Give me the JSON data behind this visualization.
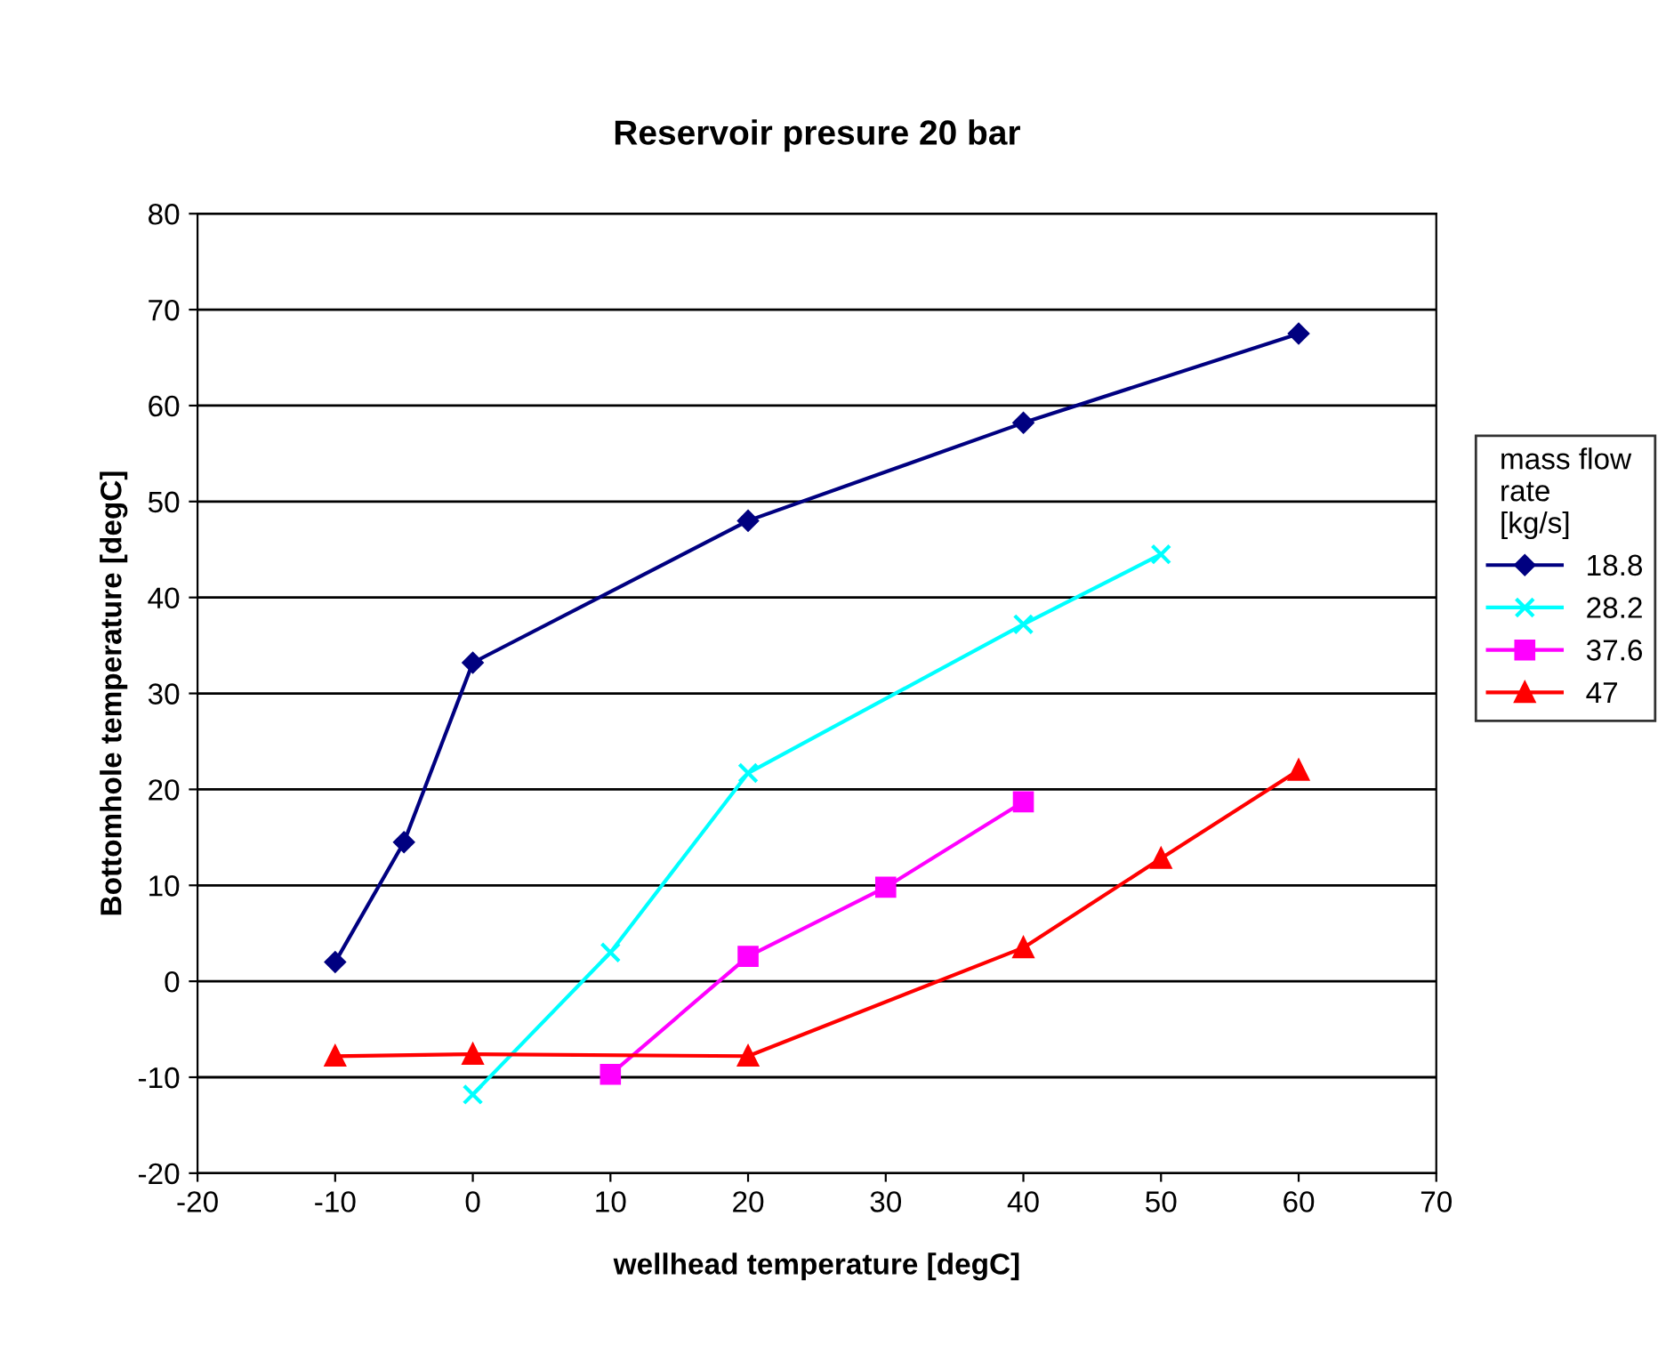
{
  "chart_data": {
    "type": "line",
    "title": "Reservoir presure 20 bar",
    "xlabel": "wellhead temperature [degC]",
    "ylabel": "Bottomhole temperature [degC]",
    "legend_title": "mass flow\nrate\n[kg/s]",
    "xlim": [
      -20,
      70
    ],
    "xticks": [
      -20,
      -10,
      0,
      10,
      20,
      30,
      40,
      50,
      60,
      70
    ],
    "ylim": [
      -20,
      80
    ],
    "yticks": [
      -20,
      -10,
      0,
      10,
      20,
      30,
      40,
      50,
      60,
      70,
      80
    ],
    "grid": "y",
    "legend": "right",
    "line_style": "solid",
    "series": [
      {
        "name": "18.8",
        "color": "#000080",
        "marker": "diamond",
        "x": [
          -10,
          -5,
          0,
          20,
          40,
          60
        ],
        "values": [
          2,
          14.5,
          33.2,
          48,
          58.2,
          67.5
        ]
      },
      {
        "name": "28.2",
        "color": "#00ffff",
        "marker": "cross",
        "x": [
          0,
          10,
          20,
          40,
          50
        ],
        "values": [
          -11.8,
          3,
          21.7,
          37.2,
          44.5
        ]
      },
      {
        "name": "37.6",
        "color": "#ff00ff",
        "marker": "square",
        "x": [
          10,
          20,
          30,
          40
        ],
        "values": [
          -9.7,
          2.6,
          9.8,
          18.7
        ]
      },
      {
        "name": "47",
        "color": "#ff0000",
        "marker": "triangle",
        "x": [
          -10,
          0,
          20,
          40,
          50,
          60
        ],
        "values": [
          -7.8,
          -7.6,
          -7.8,
          3.5,
          12.8,
          22
        ]
      }
    ]
  }
}
